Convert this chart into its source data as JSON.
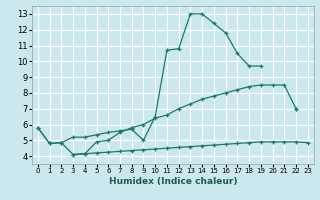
{
  "xlabel": "Humidex (Indice chaleur)",
  "ylabel": "",
  "bg_color": "#cce8ef",
  "grid_color": "#ffffff",
  "line_color": "#1a7a6e",
  "xlim": [
    -0.5,
    23.5
  ],
  "ylim": [
    3.5,
    13.5
  ],
  "xticks": [
    0,
    1,
    2,
    3,
    4,
    5,
    6,
    7,
    8,
    9,
    10,
    11,
    12,
    13,
    14,
    15,
    16,
    17,
    18,
    19,
    20,
    21,
    22,
    23
  ],
  "yticks": [
    4,
    5,
    6,
    7,
    8,
    9,
    10,
    11,
    12,
    13
  ],
  "line1_x": [
    0,
    1,
    2,
    3,
    4,
    5,
    6,
    7,
    8,
    9,
    10,
    11,
    12,
    13,
    14,
    15,
    16,
    17,
    18,
    19,
    20,
    21,
    22
  ],
  "line1_y": [
    5.8,
    4.8,
    4.85,
    5.2,
    5.2,
    5.35,
    5.5,
    5.6,
    5.7,
    5.0,
    6.5,
    10.7,
    10.8,
    13.0,
    13.0,
    12.4,
    11.8,
    10.5,
    9.7,
    9.7,
    null,
    null,
    7.0
  ],
  "line2_x": [
    0,
    1,
    2,
    3,
    4,
    5,
    6,
    7,
    8,
    9,
    10,
    11,
    12,
    13,
    14,
    15,
    16,
    17,
    18,
    19,
    20,
    21,
    22
  ],
  "line2_y": [
    5.8,
    4.8,
    4.85,
    4.1,
    4.15,
    4.9,
    5.0,
    5.5,
    5.8,
    6.0,
    6.4,
    6.6,
    7.0,
    7.3,
    7.6,
    7.8,
    8.0,
    8.2,
    8.4,
    8.5,
    8.5,
    8.5,
    7.0
  ],
  "line3_x": [
    3,
    4,
    5,
    6,
    7,
    8,
    9,
    10,
    11,
    12,
    13,
    14,
    15,
    16,
    17,
    18,
    19,
    20,
    21,
    22,
    23
  ],
  "line3_y": [
    4.1,
    4.15,
    4.2,
    4.25,
    4.3,
    4.35,
    4.4,
    4.45,
    4.5,
    4.55,
    4.6,
    4.65,
    4.7,
    4.75,
    4.8,
    4.85,
    4.9,
    4.9,
    4.9,
    4.9,
    4.85
  ]
}
